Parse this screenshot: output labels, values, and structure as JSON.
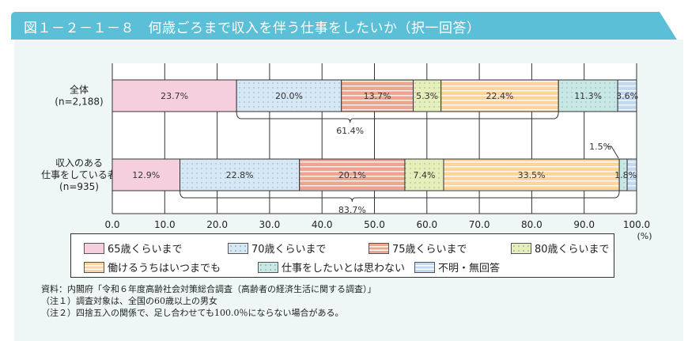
{
  "title": "図１－２－１－８　何歳ごろまで収入を伴う仕事をしたいか（択一回答）",
  "chart_data": {
    "type": "bar",
    "orientation": "horizontal",
    "stacked": true,
    "categories": [
      {
        "label1": "全体",
        "label2": "(n=2,188)",
        "label3": ""
      },
      {
        "label1": "収入のある",
        "label2": "仕事をしている者",
        "label3": "(n=935)"
      }
    ],
    "series": [
      {
        "name": "65歳くらいまで",
        "color": "#f6cfdf",
        "pattern": "solid",
        "values": [
          23.7,
          12.9
        ]
      },
      {
        "name": "70歳くらいまで",
        "color": "#d6e7f6",
        "pattern": "dots",
        "values": [
          20.0,
          22.8
        ]
      },
      {
        "name": "75歳くらいまで",
        "color": "#eca592",
        "pattern": "stripes",
        "values": [
          13.7,
          20.1
        ]
      },
      {
        "name": "80歳くらいまで",
        "color": "#e6efb9",
        "pattern": "dots",
        "values": [
          5.3,
          7.4
        ]
      },
      {
        "name": "働けるうちはいつまでも",
        "color": "#fbd59c",
        "pattern": "stripes",
        "values": [
          22.4,
          33.5
        ]
      },
      {
        "name": "仕事をしたいとは思わない",
        "color": "#c8e8e6",
        "pattern": "dots",
        "values": [
          11.3,
          1.5
        ]
      },
      {
        "name": "不明・無回答",
        "color": "#c2d9f1",
        "pattern": "stripes",
        "values": [
          3.6,
          1.8
        ]
      }
    ],
    "data_labels": [
      [
        "23.7%",
        "20.0%",
        "13.7%",
        "5.3%",
        "22.4%",
        "11.3%",
        "3.6%"
      ],
      [
        "12.9%",
        "22.8%",
        "20.1%",
        "7.4%",
        "33.5%",
        "1.5%",
        "1.8%"
      ]
    ],
    "brackets": [
      {
        "row": 0,
        "from": 23.7,
        "to": 85.1,
        "label": "61.4%"
      },
      {
        "row": 1,
        "from": 12.9,
        "to": 96.7,
        "label": "83.7%"
      }
    ],
    "xticks": [
      "0.0",
      "10.0",
      "20.0",
      "30.0",
      "40.0",
      "50.0",
      "60.0",
      "70.0",
      "80.0",
      "90.0",
      "100.0"
    ],
    "xunit": "(%)",
    "xlim": [
      0,
      100
    ],
    "grid": true,
    "legend_position": "bottom"
  },
  "notes": [
    "資料：内閣府「令和６年度高齢社会対策総合調査（高齢者の経済生活に関する調査）」",
    "（注１）調査対象は、全国の60歳以上の男女",
    "（注２）四捨五入の関係で、足し合わせても100.0％にならない場合がある。"
  ]
}
